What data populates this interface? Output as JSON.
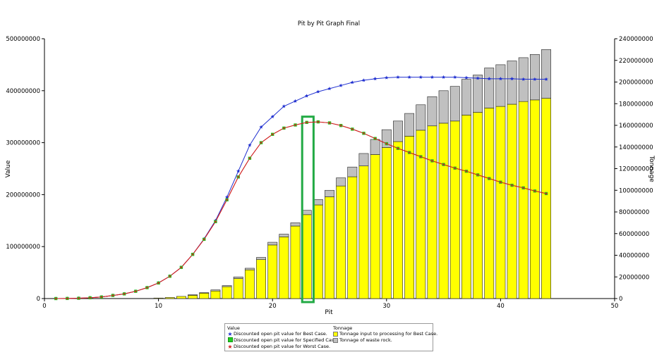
{
  "chart_data": {
    "type": "bar",
    "title": "Pit by Pit Graph Final",
    "xlabel": "Pit",
    "ylabel": "Value",
    "y2label": "Tonnage",
    "xlim": [
      0,
      50
    ],
    "ylim": [
      0,
      500000000
    ],
    "y2lim": [
      0,
      240000000
    ],
    "xticks": [
      "0",
      "10",
      "20",
      "30",
      "40",
      "50"
    ],
    "yticks": [
      "0",
      "100000000",
      "200000000",
      "300000000",
      "400000000",
      "500000000"
    ],
    "y2ticks": [
      "0",
      "20000000",
      "40000000",
      "60000000",
      "80000000",
      "100000000",
      "120000000",
      "140000000",
      "160000000",
      "180000000",
      "200000000",
      "220000000",
      "240000000"
    ],
    "grid": false,
    "legend_position": "bottom",
    "legend_headers": {
      "value": "Value",
      "tonnage": "Tonnage"
    },
    "x": [
      1,
      2,
      3,
      4,
      5,
      6,
      7,
      8,
      9,
      10,
      11,
      12,
      13,
      14,
      15,
      16,
      17,
      18,
      19,
      20,
      21,
      22,
      23,
      24,
      25,
      26,
      27,
      28,
      29,
      30,
      31,
      32,
      33,
      34,
      35,
      36,
      37,
      38,
      39,
      40,
      41,
      42,
      43,
      44
    ],
    "bar_series": [
      {
        "name": "Tonnage input to processing for Best Case.",
        "color": "#ffff00",
        "values": [
          0,
          0,
          0,
          0,
          0,
          0,
          0,
          0,
          0,
          500000,
          1000000,
          2000000,
          3000000,
          5000000,
          7000000,
          11000000,
          18500000,
          26500000,
          36000000,
          49500000,
          57000000,
          67000000,
          77500000,
          86500000,
          94000000,
          104000000,
          112500000,
          122500000,
          133000000,
          139500000,
          145000000,
          150000000,
          155500000,
          159500000,
          162000000,
          164000000,
          169500000,
          172000000,
          176000000,
          177500000,
          179500000,
          182000000,
          183500000,
          185000000
        ]
      },
      {
        "name": "Tonnage of waste rock.",
        "color": "#c0c0c0",
        "values": [
          0,
          0,
          0,
          0,
          0,
          0,
          0,
          0,
          0,
          0,
          0,
          0,
          500000,
          500000,
          1000000,
          1000000,
          1500000,
          1500000,
          2000000,
          2500000,
          2500000,
          3000000,
          4000000,
          5000000,
          6000000,
          7500000,
          9000000,
          11500000,
          14000000,
          16500000,
          19000000,
          21000000,
          23500000,
          27000000,
          30000000,
          32000000,
          33000000,
          34500000,
          37000000,
          38500000,
          40000000,
          40500000,
          42000000,
          45000000
        ]
      }
    ],
    "line_series": [
      {
        "name": "Discounted open pit value for Best Case.",
        "axis": "left",
        "line_color": "#2030d0",
        "marker": "star",
        "marker_color": "#2030d0",
        "values": [
          0,
          200000,
          600000,
          1500000,
          3000000,
          6000000,
          9000000,
          14000000,
          21000000,
          30000000,
          43000000,
          60000000,
          85000000,
          115000000,
          150000000,
          195000000,
          245000000,
          295000000,
          330000000,
          350000000,
          370000000,
          380000000,
          390000000,
          398000000,
          404000000,
          410000000,
          416000000,
          420000000,
          423000000,
          425000000,
          426000000,
          426000000,
          426000000,
          426000000,
          426000000,
          426000000,
          425000000,
          424000000,
          423000000,
          423000000,
          423000000,
          422000000,
          422000000,
          422000000
        ]
      },
      {
        "name": "Discounted open pit value for Specified Case.",
        "axis": "left",
        "line_color": "#d02020",
        "marker": "square",
        "marker_color": "#22cc22",
        "values": [
          0,
          200000,
          600000,
          1500000,
          3000000,
          6000000,
          9000000,
          14000000,
          21000000,
          30000000,
          43000000,
          60000000,
          85000000,
          114000000,
          148000000,
          190000000,
          234000000,
          270000000,
          300000000,
          316000000,
          328000000,
          334000000,
          339000000,
          340000000,
          338000000,
          333000000,
          326000000,
          318000000,
          308000000,
          298000000,
          289000000,
          281000000,
          273000000,
          265000000,
          258000000,
          251000000,
          245000000,
          238000000,
          231000000,
          224000000,
          218000000,
          213000000,
          207000000,
          202000000
        ]
      },
      {
        "name": "Discounted open pit value for Worst Case.",
        "axis": "left",
        "line_color": "#d02020",
        "marker": "star",
        "marker_color": "#d02020",
        "values": [
          0,
          200000,
          600000,
          1500000,
          3000000,
          6000000,
          9000000,
          14000000,
          21000000,
          30000000,
          43000000,
          60000000,
          85000000,
          114000000,
          148000000,
          190000000,
          234000000,
          270000000,
          300000000,
          316000000,
          328000000,
          334000000,
          339000000,
          340000000,
          338000000,
          333000000,
          326000000,
          318000000,
          308000000,
          298000000,
          289000000,
          281000000,
          273000000,
          265000000,
          258000000,
          251000000,
          245000000,
          238000000,
          231000000,
          224000000,
          218000000,
          213000000,
          207000000,
          202000000
        ]
      }
    ],
    "annotations": [
      {
        "type": "rectangle",
        "color": "#22aa44",
        "x_range": [
          22.6,
          23.6
        ],
        "y_range": [
          0,
          350000000
        ]
      }
    ]
  }
}
